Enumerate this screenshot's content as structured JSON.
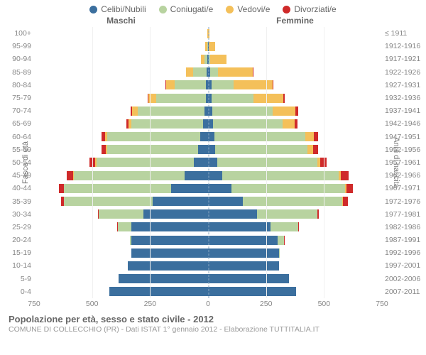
{
  "legend": [
    {
      "label": "Celibi/Nubili",
      "color": "#3b6f9e"
    },
    {
      "label": "Coniugati/e",
      "color": "#b8d3a0"
    },
    {
      "label": "Vedovi/e",
      "color": "#f4c05a"
    },
    {
      "label": "Divorziati/e",
      "color": "#cf2a2a"
    }
  ],
  "headers": {
    "male": "Maschi",
    "female": "Femmine"
  },
  "axis": {
    "left_title": "Fasce di età",
    "right_title": "Anni di nascita",
    "max": 750,
    "ticks": [
      750,
      500,
      250,
      0,
      250,
      500,
      750
    ]
  },
  "caption": {
    "line1": "Popolazione per età, sesso e stato civile - 2012",
    "line2": "COMUNE DI COLLECCHIO (PR) - Dati ISTAT 1° gennaio 2012 - Elaborazione TUTTITALIA.IT"
  },
  "colors": {
    "celibi": "#3b6f9e",
    "coniugati": "#b8d3a0",
    "vedovi": "#f4c05a",
    "divorziati": "#cf2a2a",
    "grid": "#f0f0f0",
    "centerline": "#8aa7c2",
    "bg": "#ffffff"
  },
  "rows": [
    {
      "age": "100+",
      "year": "≤ 1911",
      "m": {
        "c": 0,
        "k": 0,
        "v": 3,
        "d": 0
      },
      "f": {
        "c": 0,
        "k": 0,
        "v": 5,
        "d": 0
      }
    },
    {
      "age": "95-99",
      "year": "1912-1916",
      "m": {
        "c": 1,
        "k": 2,
        "v": 8,
        "d": 0
      },
      "f": {
        "c": 2,
        "k": 1,
        "v": 28,
        "d": 0
      }
    },
    {
      "age": "90-94",
      "year": "1917-1921",
      "m": {
        "c": 2,
        "k": 12,
        "v": 16,
        "d": 0
      },
      "f": {
        "c": 4,
        "k": 5,
        "v": 70,
        "d": 0
      }
    },
    {
      "age": "85-89",
      "year": "1922-1926",
      "m": {
        "c": 5,
        "k": 60,
        "v": 30,
        "d": 0
      },
      "f": {
        "c": 10,
        "k": 32,
        "v": 150,
        "d": 2
      }
    },
    {
      "age": "80-84",
      "year": "1927-1931",
      "m": {
        "c": 8,
        "k": 135,
        "v": 38,
        "d": 2
      },
      "f": {
        "c": 14,
        "k": 95,
        "v": 170,
        "d": 4
      }
    },
    {
      "age": "75-79",
      "year": "1932-1936",
      "m": {
        "c": 10,
        "k": 215,
        "v": 32,
        "d": 3
      },
      "f": {
        "c": 16,
        "k": 180,
        "v": 130,
        "d": 6
      }
    },
    {
      "age": "70-74",
      "year": "1937-1941",
      "m": {
        "c": 14,
        "k": 290,
        "v": 24,
        "d": 5
      },
      "f": {
        "c": 18,
        "k": 260,
        "v": 100,
        "d": 10
      }
    },
    {
      "age": "65-69",
      "year": "1942-1946",
      "m": {
        "c": 20,
        "k": 310,
        "v": 14,
        "d": 8
      },
      "f": {
        "c": 20,
        "k": 300,
        "v": 55,
        "d": 12
      }
    },
    {
      "age": "60-64",
      "year": "1947-1951",
      "m": {
        "c": 34,
        "k": 400,
        "v": 10,
        "d": 14
      },
      "f": {
        "c": 28,
        "k": 390,
        "v": 38,
        "d": 18
      }
    },
    {
      "age": "55-59",
      "year": "1952-1956",
      "m": {
        "c": 44,
        "k": 390,
        "v": 6,
        "d": 18
      },
      "f": {
        "c": 30,
        "k": 400,
        "v": 22,
        "d": 22
      }
    },
    {
      "age": "50-54",
      "year": "1957-1961",
      "m": {
        "c": 62,
        "k": 420,
        "v": 4,
        "d": 24
      },
      "f": {
        "c": 40,
        "k": 430,
        "v": 14,
        "d": 28
      }
    },
    {
      "age": "45-49",
      "year": "1962-1966",
      "m": {
        "c": 100,
        "k": 480,
        "v": 2,
        "d": 26
      },
      "f": {
        "c": 62,
        "k": 500,
        "v": 10,
        "d": 34
      }
    },
    {
      "age": "40-44",
      "year": "1967-1971",
      "m": {
        "c": 160,
        "k": 460,
        "v": 1,
        "d": 22
      },
      "f": {
        "c": 100,
        "k": 490,
        "v": 6,
        "d": 30
      }
    },
    {
      "age": "35-39",
      "year": "1972-1976",
      "m": {
        "c": 240,
        "k": 380,
        "v": 0,
        "d": 14
      },
      "f": {
        "c": 150,
        "k": 430,
        "v": 3,
        "d": 20
      }
    },
    {
      "age": "30-34",
      "year": "1977-1981",
      "m": {
        "c": 280,
        "k": 190,
        "v": 0,
        "d": 6
      },
      "f": {
        "c": 210,
        "k": 260,
        "v": 1,
        "d": 8
      }
    },
    {
      "age": "25-29",
      "year": "1982-1986",
      "m": {
        "c": 330,
        "k": 60,
        "v": 0,
        "d": 2
      },
      "f": {
        "c": 270,
        "k": 120,
        "v": 0,
        "d": 3
      }
    },
    {
      "age": "20-24",
      "year": "1987-1991",
      "m": {
        "c": 330,
        "k": 8,
        "v": 0,
        "d": 0
      },
      "f": {
        "c": 300,
        "k": 28,
        "v": 0,
        "d": 1
      }
    },
    {
      "age": "15-19",
      "year": "1992-1996",
      "m": {
        "c": 330,
        "k": 0,
        "v": 0,
        "d": 0
      },
      "f": {
        "c": 305,
        "k": 2,
        "v": 0,
        "d": 0
      }
    },
    {
      "age": "10-14",
      "year": "1997-2001",
      "m": {
        "c": 345,
        "k": 0,
        "v": 0,
        "d": 0
      },
      "f": {
        "c": 305,
        "k": 0,
        "v": 0,
        "d": 0
      }
    },
    {
      "age": "5-9",
      "year": "2002-2006",
      "m": {
        "c": 385,
        "k": 0,
        "v": 0,
        "d": 0
      },
      "f": {
        "c": 350,
        "k": 0,
        "v": 0,
        "d": 0
      }
    },
    {
      "age": "0-4",
      "year": "2007-2011",
      "m": {
        "c": 425,
        "k": 0,
        "v": 0,
        "d": 0
      },
      "f": {
        "c": 380,
        "k": 0,
        "v": 0,
        "d": 0
      }
    }
  ]
}
